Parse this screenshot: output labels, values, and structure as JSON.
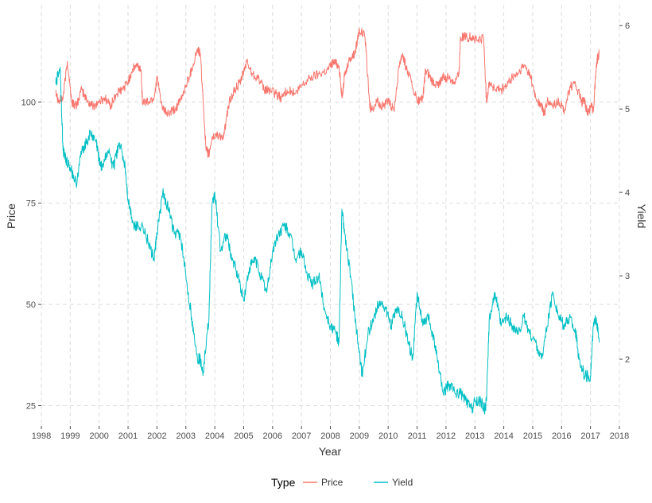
{
  "chart_data": {
    "type": "line",
    "title": "",
    "xlabel": "Year",
    "ylabel": "Price",
    "y2label": "Yield",
    "xlim": [
      1998,
      2018
    ],
    "xticks": [
      "1998",
      "1999",
      "2000",
      "2001",
      "2002",
      "2003",
      "2004",
      "2005",
      "2006",
      "2007",
      "2008",
      "2009",
      "2010",
      "2011",
      "2012",
      "2013",
      "2014",
      "2015",
      "2016",
      "2017",
      "2018"
    ],
    "ylim": [
      20,
      124
    ],
    "yticks": [
      "25",
      "50",
      "75",
      "100"
    ],
    "y2lim": [
      1.2,
      6.25
    ],
    "y2ticks": [
      "2",
      "3",
      "4",
      "5",
      "6"
    ],
    "grid": true,
    "legend": {
      "title": "Type",
      "position": "bottom"
    },
    "series": [
      {
        "name": "Price",
        "color": "#F8766D",
        "axis": "left",
        "x": [
          1998.5,
          1998.6,
          1998.75,
          1998.9,
          1999.05,
          1999.2,
          1999.4,
          1999.6,
          1999.8,
          2000.0,
          2000.2,
          2000.4,
          2000.6,
          2000.8,
          2001.0,
          2001.15,
          2001.3,
          2001.45,
          2001.5,
          2001.7,
          2001.9,
          2002.0,
          2002.2,
          2002.4,
          2002.6,
          2002.8,
          2003.0,
          2003.2,
          2003.4,
          2003.5,
          2003.6,
          2003.7,
          2003.8,
          2003.9,
          2004.1,
          2004.3,
          2004.5,
          2004.7,
          2004.9,
          2005.1,
          2005.3,
          2005.5,
          2005.7,
          2005.9,
          2006.1,
          2006.3,
          2006.5,
          2006.8,
          2007.0,
          2007.3,
          2007.6,
          2007.9,
          2008.1,
          2008.3,
          2008.4,
          2008.5,
          2008.7,
          2008.85,
          2009.0,
          2009.2,
          2009.35,
          2009.4,
          2009.6,
          2009.8,
          2010.0,
          2010.2,
          2010.4,
          2010.5,
          2010.6,
          2010.8,
          2011.0,
          2011.2,
          2011.3,
          2011.5,
          2011.7,
          2011.9,
          2012.1,
          2012.3,
          2012.45,
          2012.5,
          2012.7,
          2012.9,
          2013.1,
          2013.3,
          2013.4,
          2013.5,
          2013.7,
          2013.9,
          2014.1,
          2014.3,
          2014.5,
          2014.7,
          2014.9,
          2015.1,
          2015.3,
          2015.4,
          2015.5,
          2015.7,
          2015.9,
          2016.1,
          2016.3,
          2016.5,
          2016.7,
          2016.8,
          2016.9,
          2017.0,
          2017.1,
          2017.2,
          2017.25,
          2017.3
        ],
        "y": [
          103,
          100,
          101,
          110,
          100,
          99,
          103,
          100,
          99,
          100,
          101,
          99,
          102,
          103,
          105,
          108,
          109,
          108,
          100,
          100,
          101,
          106,
          98,
          97,
          98,
          100,
          104,
          108,
          113,
          112,
          100,
          88,
          87,
          91,
          92,
          91,
          100,
          103,
          105,
          110,
          107,
          106,
          103,
          103,
          102,
          101,
          103,
          102,
          104,
          106,
          107,
          108,
          110,
          109,
          101,
          107,
          111,
          112,
          118,
          116,
          100,
          98,
          100,
          99,
          100,
          98,
          110,
          112,
          109,
          105,
          100,
          101,
          108,
          105,
          104,
          106,
          106,
          105,
          107,
          116,
          116,
          116,
          115,
          116,
          100,
          105,
          103,
          103,
          104,
          106,
          107,
          109,
          107,
          101,
          99,
          97,
          100,
          99,
          100,
          98,
          104,
          104,
          100,
          100,
          97,
          99,
          98,
          109,
          111,
          112
        ]
      },
      {
        "name": "Yield",
        "color": "#00BFC4",
        "axis": "right",
        "x": [
          1998.5,
          1998.65,
          1998.75,
          1998.85,
          1999.0,
          1999.2,
          1999.4,
          1999.55,
          1999.7,
          1999.9,
          2000.0,
          2000.1,
          2000.3,
          2000.5,
          2000.7,
          2000.9,
          2001.0,
          2001.2,
          2001.3,
          2001.5,
          2001.7,
          2001.9,
          2002.0,
          2002.2,
          2002.4,
          2002.6,
          2002.8,
          2003.0,
          2003.2,
          2003.4,
          2003.5,
          2003.6,
          2003.8,
          2003.9,
          2004.0,
          2004.2,
          2004.4,
          2004.6,
          2004.8,
          2005.0,
          2005.2,
          2005.4,
          2005.6,
          2005.8,
          2006.0,
          2006.2,
          2006.4,
          2006.6,
          2006.8,
          2007.0,
          2007.2,
          2007.4,
          2007.6,
          2007.8,
          2008.0,
          2008.2,
          2008.3,
          2008.4,
          2008.5,
          2008.7,
          2008.85,
          2009.0,
          2009.1,
          2009.3,
          2009.5,
          2009.7,
          2009.9,
          2010.1,
          2010.3,
          2010.5,
          2010.7,
          2010.85,
          2011.0,
          2011.2,
          2011.4,
          2011.6,
          2011.7,
          2011.9,
          2012.1,
          2012.3,
          2012.5,
          2012.7,
          2012.9,
          2013.0,
          2013.2,
          2013.35,
          2013.4,
          2013.5,
          2013.7,
          2013.9,
          2014.1,
          2014.3,
          2014.5,
          2014.7,
          2014.9,
          2015.1,
          2015.3,
          2015.5,
          2015.7,
          2015.9,
          2016.1,
          2016.3,
          2016.5,
          2016.6,
          2016.8,
          2017.0,
          2017.1,
          2017.2,
          2017.3
        ],
        "y": [
          5.3,
          5.5,
          4.5,
          4.4,
          4.3,
          4.1,
          4.5,
          4.6,
          4.7,
          4.6,
          4.4,
          4.3,
          4.5,
          4.3,
          4.6,
          4.3,
          3.9,
          3.6,
          3.6,
          3.6,
          3.4,
          3.2,
          3.5,
          4.0,
          3.8,
          3.5,
          3.5,
          3.0,
          2.5,
          2.0,
          2.0,
          1.85,
          2.5,
          3.8,
          4.0,
          3.3,
          3.5,
          3.2,
          3.0,
          2.7,
          3.1,
          3.2,
          3.0,
          2.8,
          3.3,
          3.5,
          3.6,
          3.5,
          3.2,
          3.3,
          3.0,
          2.9,
          3.0,
          2.6,
          2.4,
          2.3,
          2.2,
          3.8,
          3.5,
          3.0,
          2.5,
          2.1,
          1.8,
          2.3,
          2.5,
          2.7,
          2.6,
          2.4,
          2.6,
          2.5,
          2.2,
          2.0,
          2.8,
          2.4,
          2.5,
          2.2,
          2.0,
          1.6,
          1.7,
          1.6,
          1.6,
          1.5,
          1.4,
          1.5,
          1.5,
          1.4,
          1.5,
          2.5,
          2.8,
          2.4,
          2.5,
          2.4,
          2.3,
          2.5,
          2.3,
          2.2,
          2.0,
          2.4,
          2.8,
          2.5,
          2.4,
          2.5,
          2.3,
          2.0,
          1.8,
          1.8,
          2.4,
          2.5,
          2.2
        ]
      }
    ]
  }
}
